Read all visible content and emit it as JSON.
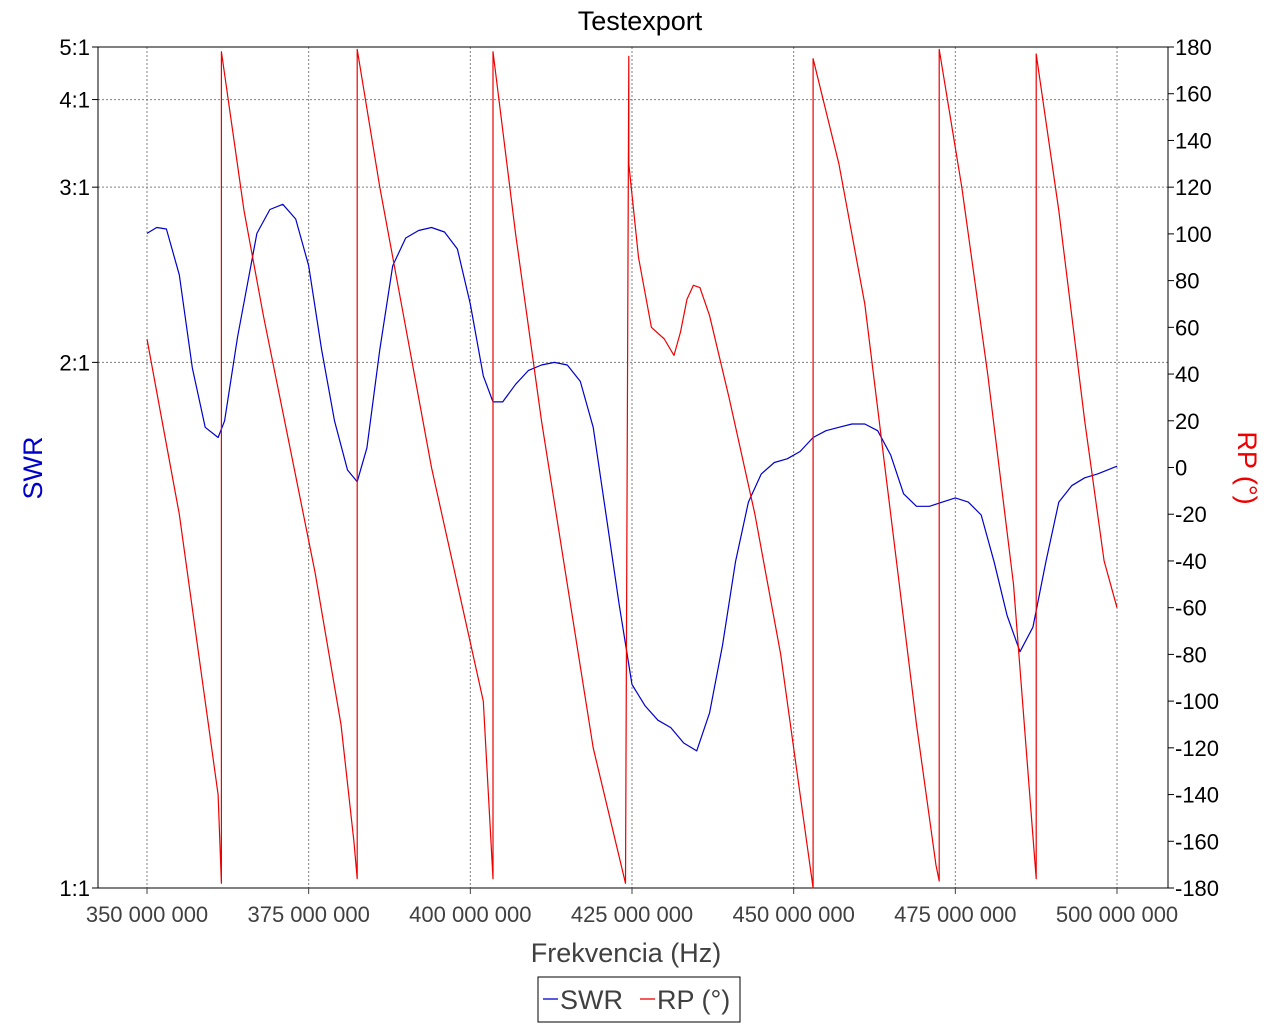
{
  "chart_data": {
    "type": "line",
    "title": "Testexport",
    "xlabel": "Frekvencia (Hz)",
    "ylabel_left": "SWR",
    "ylabel_right": "RP (°)",
    "xlim": [
      350000000,
      500000000
    ],
    "x_ticks": [
      350000000,
      375000000,
      400000000,
      425000000,
      450000000,
      475000000,
      500000000
    ],
    "x_tick_labels": [
      "350 000 000",
      "375 000 000",
      "400 000 000",
      "425 000 000",
      "450 000 000",
      "475 000 000",
      "500 000 000"
    ],
    "y_left_scale": "reciprocal",
    "y_left_lim": [
      1,
      5
    ],
    "y_left_ticks": [
      1,
      2,
      3,
      4,
      5
    ],
    "y_left_tick_labels": [
      "1:1",
      "2:1",
      "3:1",
      "4:1",
      "5:1"
    ],
    "y_right_lim": [
      -180,
      180
    ],
    "y_right_ticks": [
      180,
      160,
      140,
      120,
      100,
      80,
      60,
      40,
      20,
      0,
      -20,
      -40,
      -60,
      -80,
      -100,
      -120,
      -140,
      -160,
      -180
    ],
    "grid": true,
    "legend_position": "bottom-center",
    "colors": {
      "swr": "#0000cc",
      "rp": "#ee0000",
      "grid": "#808080",
      "frame": "#000000"
    },
    "series": [
      {
        "name": "SWR",
        "axis": "left",
        "x": [
          350000000,
          351500000,
          353000000,
          355000000,
          357000000,
          359000000,
          361000000,
          362000000,
          364000000,
          367000000,
          369000000,
          371000000,
          373000000,
          375000000,
          377000000,
          379000000,
          381000000,
          382500000,
          384000000,
          386000000,
          388000000,
          390000000,
          392000000,
          394000000,
          396000000,
          398000000,
          400000000,
          402000000,
          403500000,
          405000000,
          407000000,
          409000000,
          411000000,
          413000000,
          415000000,
          417000000,
          419000000,
          421000000,
          423000000,
          425000000,
          427000000,
          429000000,
          431000000,
          433000000,
          435000000,
          437000000,
          439000000,
          441000000,
          443000000,
          445000000,
          447000000,
          449000000,
          451000000,
          453000000,
          455000000,
          457000000,
          459000000,
          461000000,
          463000000,
          465000000,
          467000000,
          469000000,
          471000000,
          473000000,
          475000000,
          477000000,
          479000000,
          481000000,
          483000000,
          485000000,
          487000000,
          489000000,
          491000000,
          493000000,
          495000000,
          497000000,
          500000000
        ],
        "values": [
          2.65,
          2.69,
          2.68,
          2.4,
          1.98,
          1.78,
          1.75,
          1.8,
          2.1,
          2.65,
          2.82,
          2.86,
          2.75,
          2.45,
          2.05,
          1.8,
          1.66,
          1.63,
          1.72,
          2.05,
          2.45,
          2.62,
          2.67,
          2.69,
          2.66,
          2.55,
          2.25,
          1.95,
          1.86,
          1.86,
          1.92,
          1.97,
          1.99,
          2.0,
          1.99,
          1.93,
          1.78,
          1.55,
          1.37,
          1.24,
          1.21,
          1.19,
          1.18,
          1.16,
          1.15,
          1.2,
          1.3,
          1.45,
          1.58,
          1.65,
          1.68,
          1.69,
          1.71,
          1.75,
          1.77,
          1.78,
          1.79,
          1.79,
          1.77,
          1.7,
          1.6,
          1.57,
          1.57,
          1.58,
          1.59,
          1.58,
          1.55,
          1.45,
          1.35,
          1.29,
          1.33,
          1.45,
          1.58,
          1.62,
          1.64,
          1.65,
          1.67
        ]
      },
      {
        "name": "RP (°)",
        "axis": "right",
        "x": [
          350000000,
          352000000,
          355000000,
          358000000,
          361000000,
          361500000,
          361500000,
          365000000,
          368000000,
          372000000,
          376000000,
          380000000,
          382000000,
          382500000,
          382500000,
          386000000,
          390000000,
          394000000,
          398000000,
          402000000,
          403500000,
          403500000,
          407000000,
          411000000,
          415000000,
          419000000,
          424000000,
          424500000,
          424500000,
          426000000,
          428000000,
          430000000,
          431500000,
          432500000,
          433500000,
          434500000,
          435500000,
          437000000,
          440000000,
          444000000,
          448000000,
          452000000,
          453000000,
          453000000,
          457000000,
          461000000,
          465000000,
          469000000,
          472000000,
          472500000,
          472500000,
          476000000,
          480000000,
          484000000,
          487500000,
          487500000,
          491000000,
          495000000,
          498000000,
          500000000
        ],
        "values": [
          55,
          25,
          -20,
          -80,
          -140,
          -178,
          178,
          110,
          65,
          10,
          -45,
          -110,
          -160,
          -176,
          179,
          120,
          60,
          0,
          -50,
          -100,
          -176,
          178,
          100,
          20,
          -50,
          -120,
          -178,
          176,
          130,
          90,
          60,
          55,
          48,
          58,
          72,
          78,
          77,
          65,
          30,
          -20,
          -80,
          -160,
          -180,
          175,
          130,
          70,
          -20,
          -110,
          -170,
          -177,
          179,
          120,
          40,
          -50,
          -176,
          177,
          110,
          20,
          -40,
          -60
        ]
      }
    ]
  },
  "legend": {
    "swr_label": "SWR",
    "rp_label": "RP (°)"
  }
}
